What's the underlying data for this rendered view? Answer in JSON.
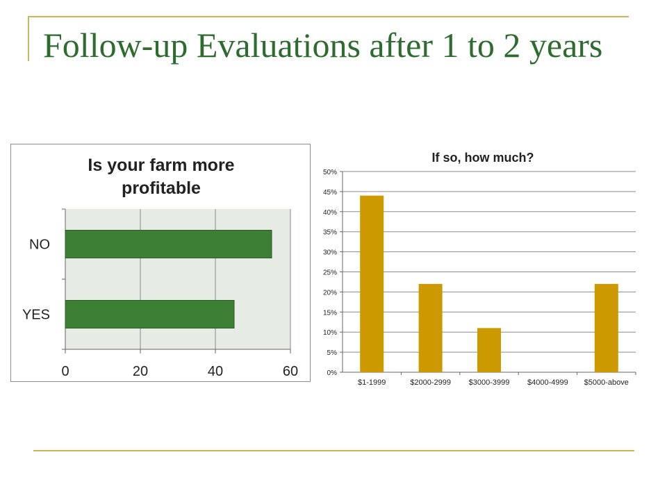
{
  "slide": {
    "title": "Follow-up Evaluations after 1 to 2 years"
  },
  "colors": {
    "title": "#2e6b2e",
    "accent_line": "#c9b65a",
    "left_bar": "#3c7f35",
    "left_plot_bg": "#e6ebe4",
    "right_bar": "#cc9900"
  },
  "chart_data": [
    {
      "type": "bar",
      "orientation": "horizontal",
      "title": "Is your farm more profitable",
      "title_lines": [
        "Is your farm more",
        "profitable"
      ],
      "categories": [
        "NO",
        "YES"
      ],
      "values": [
        55,
        45
      ],
      "xlim": [
        0,
        60
      ],
      "x_ticks": [
        0,
        20,
        40,
        60
      ],
      "x_tick_labels": [
        "0",
        "20",
        "40",
        "60"
      ],
      "grid": true,
      "legend": "none"
    },
    {
      "type": "bar",
      "orientation": "vertical",
      "title": "If so, how much?",
      "categories": [
        "$1-1999",
        "$2000-2999",
        "$3000-3999",
        "$4000-4999",
        "$5000-above"
      ],
      "values": [
        44,
        22,
        11,
        0,
        22
      ],
      "ylim": [
        0,
        50
      ],
      "y_ticks": [
        0,
        5,
        10,
        15,
        20,
        25,
        30,
        35,
        40,
        45,
        50
      ],
      "y_tick_labels": [
        "0%",
        "5%",
        "10%",
        "15%",
        "20%",
        "25%",
        "30%",
        "35%",
        "40%",
        "45%",
        "50%"
      ],
      "grid": true,
      "legend": "none"
    }
  ]
}
